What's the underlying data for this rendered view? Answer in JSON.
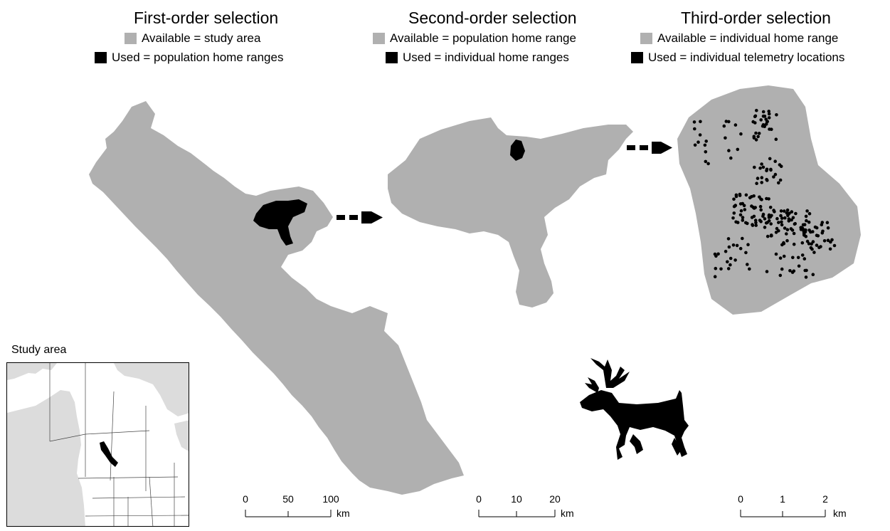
{
  "panels": [
    {
      "title": "First-order selection",
      "legend_available": "Available = study area",
      "legend_used": "Used = population home ranges"
    },
    {
      "title": "Second-order selection",
      "legend_available": "Available = population home range",
      "legend_used": "Used = individual home ranges"
    },
    {
      "title": "Third-order selection",
      "legend_available": "Available = individual home range",
      "legend_used": "Used = individual telemetry locations"
    }
  ],
  "inset": {
    "title": "Study area"
  },
  "scalebars": [
    {
      "ticks": [
        "0",
        "50",
        "100"
      ],
      "unit": "km"
    },
    {
      "ticks": [
        "0",
        "10",
        "20"
      ],
      "unit": "km"
    },
    {
      "ticks": [
        "0",
        "1",
        "2"
      ],
      "unit": "km"
    }
  ],
  "colors": {
    "available": "#b0b0b0",
    "used": "#000000",
    "arrow": "#000000"
  },
  "icons": [
    "caribou-silhouette-icon",
    "dashed-arrow-icon"
  ]
}
